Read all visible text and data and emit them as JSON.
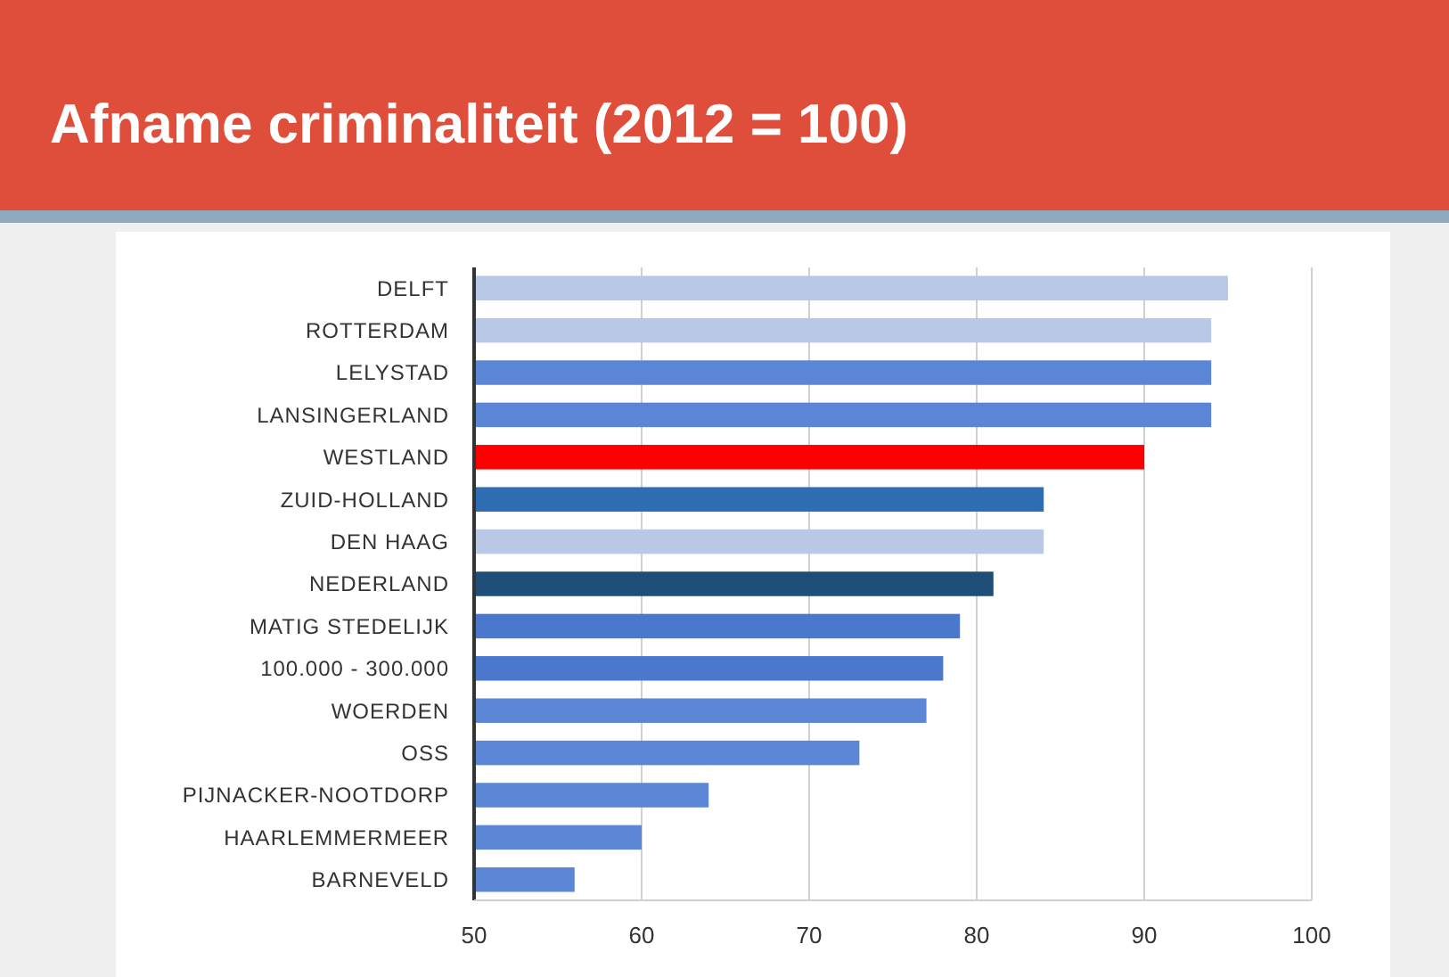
{
  "chart_data": {
    "type": "bar",
    "orientation": "horizontal",
    "title": "Afname criminaliteit (2012 = 100)",
    "categories": [
      "DELFT",
      "ROTTERDAM",
      "LELYSTAD",
      "LANSINGERLAND",
      "WESTLAND",
      "ZUID-HOLLAND",
      "DEN HAAG",
      "NEDERLAND",
      "MATIG STEDELIJK",
      "100.000 - 300.000",
      "WOERDEN",
      "OSS",
      "PIJNACKER-NOOTDORP",
      "HAARLEMMERMEER",
      "BARNEVELD"
    ],
    "values": [
      95,
      94,
      94,
      94,
      90,
      84,
      84,
      81,
      79,
      78,
      77,
      73,
      64,
      60,
      56
    ],
    "colors": [
      "#b9c8e6",
      "#b9c8e6",
      "#5b86d6",
      "#5b86d6",
      "#ff0000",
      "#2e6db4",
      "#b9c8e6",
      "#1f4e79",
      "#4a78cc",
      "#4a78cc",
      "#5b86d6",
      "#5b86d6",
      "#5b86d6",
      "#5b86d6",
      "#5b86d6"
    ],
    "xlim": [
      50,
      100
    ],
    "xticks": [
      50,
      60,
      70,
      80,
      90,
      100
    ],
    "grid": "x"
  }
}
